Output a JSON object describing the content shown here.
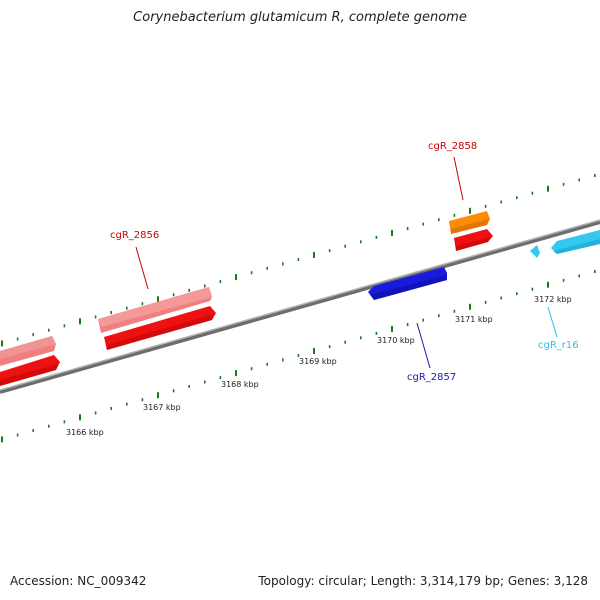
{
  "title": "Corynebacterium glutamicum R, complete genome",
  "footer": {
    "accession": "Accession: NC_009342",
    "summary": "Topology: circular; Length: 3,314,179 bp; Genes: 3,128"
  },
  "colors": {
    "backbone": "#8a8a8a",
    "ticks": "#1f7a1f",
    "pink": "#f08080",
    "red": "#ee1111",
    "orange": "#ff8c00",
    "blue": "#1a1add",
    "cyan": "#33c8f0",
    "label_red": "#cc0000",
    "label_blue": "#1a1aaa",
    "label_cyan": "#2ac0ee"
  },
  "scale": {
    "labels": [
      "3166 kbp",
      "3167 kbp",
      "3168 kbp",
      "3169 kbp",
      "3170 kbp",
      "3171 kbp",
      "3172 kbp"
    ]
  },
  "genes": {
    "cgR_2856": "cgR_2856",
    "cgR_2857": "cgR_2857",
    "cgR_2858": "cgR_2858",
    "cgR_r16": "cgR_r16"
  }
}
